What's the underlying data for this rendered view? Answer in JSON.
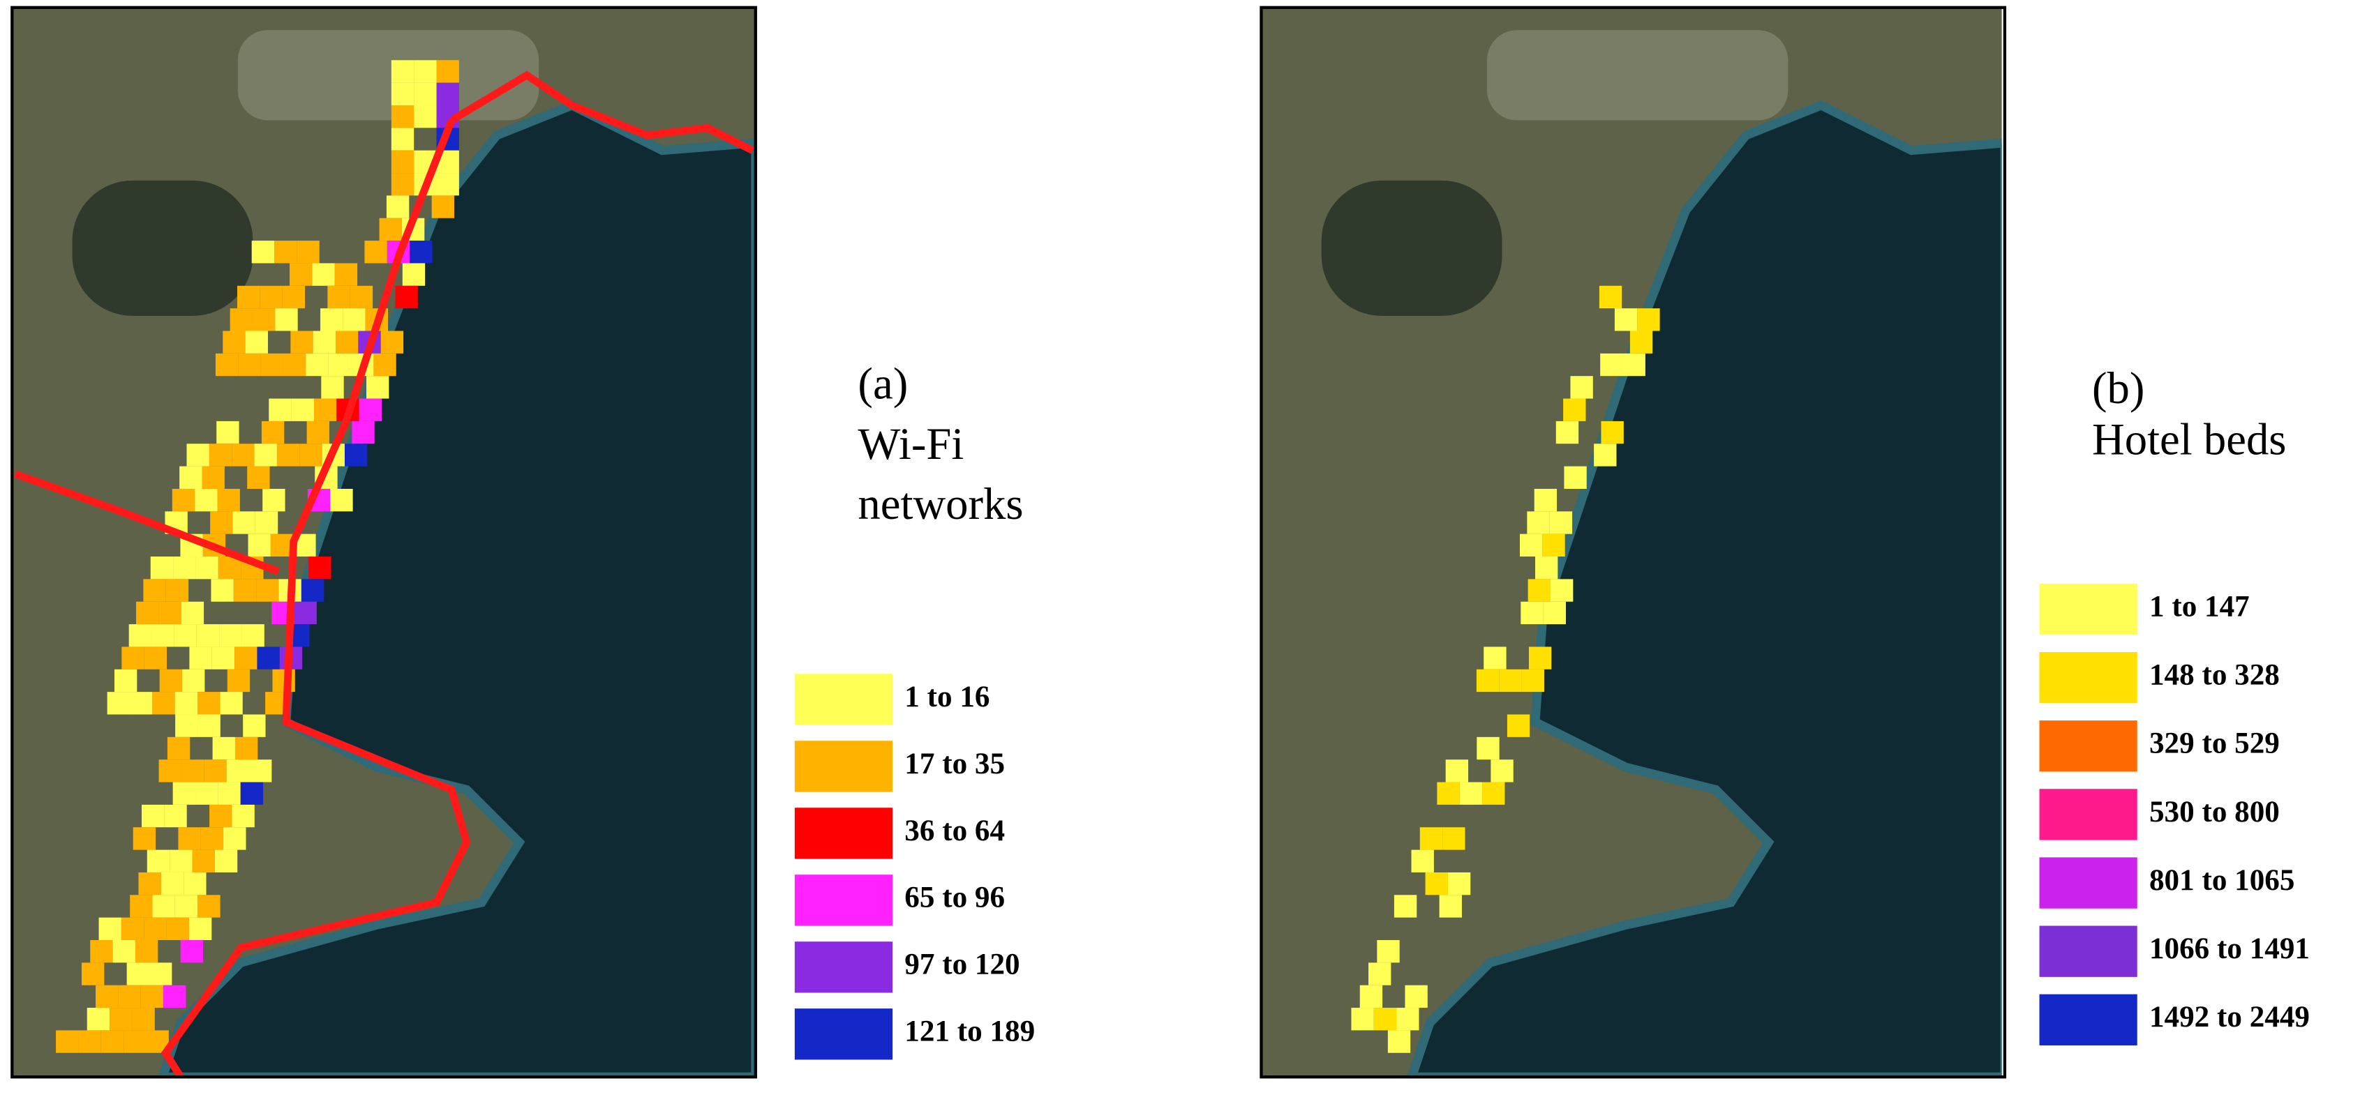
{
  "panels": [
    {
      "label": "(a)",
      "title_lines": [
        "Wi-Fi",
        "networks"
      ],
      "legend": [
        {
          "label": "1 to 16",
          "color": "#ffff55"
        },
        {
          "label": "17 to 35",
          "color": "#ffb300"
        },
        {
          "label": "36 to 64",
          "color": "#ff0000"
        },
        {
          "label": "65 to 96",
          "color": "#ff22ff"
        },
        {
          "label": "97 to 120",
          "color": "#8a2be2"
        },
        {
          "label": "121 to 189",
          "color": "#1428c8"
        }
      ]
    },
    {
      "label": "(b)",
      "title_lines": [
        "Hotel beds"
      ],
      "legend": [
        {
          "label": "1 to 147",
          "color": "#ffff55"
        },
        {
          "label": "148 to 328",
          "color": "#ffe000"
        },
        {
          "label": "329 to 529",
          "color": "#ff6a00"
        },
        {
          "label": "530 to 800",
          "color": "#ff1a8c"
        },
        {
          "label": "801 to 1065",
          "color": "#cc22ee"
        },
        {
          "label": "1066 to 1491",
          "color": "#7b2fd4"
        },
        {
          "label": "1492 to 2449",
          "color": "#1428c8"
        }
      ]
    }
  ]
}
